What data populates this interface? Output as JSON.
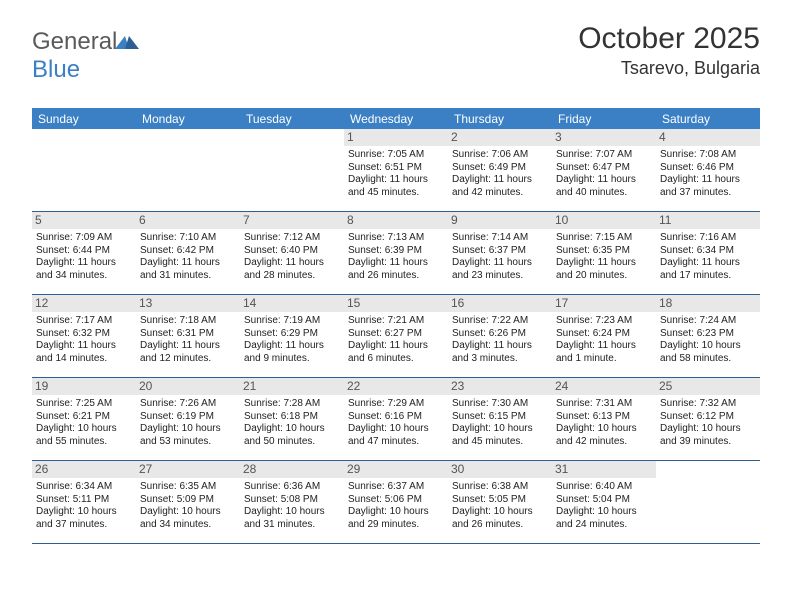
{
  "logo": {
    "text_general": "General",
    "text_blue": "Blue"
  },
  "header": {
    "month_title": "October 2025",
    "location": "Tsarevo, Bulgaria"
  },
  "colors": {
    "brand_blue": "#3b7fc4",
    "brand_blue_dark": "#2e5f94",
    "row_header_bg": "#e8e8e8",
    "text_dark": "#333333",
    "text_gray": "#5a5a5a",
    "background": "#ffffff"
  },
  "typography": {
    "month_title_fontsize": 30,
    "location_fontsize": 18,
    "day_header_fontsize": 12,
    "day_num_fontsize": 12,
    "cell_fontsize": 10,
    "logo_fontsize": 24
  },
  "day_names": [
    "Sunday",
    "Monday",
    "Tuesday",
    "Wednesday",
    "Thursday",
    "Friday",
    "Saturday"
  ],
  "weeks": [
    [
      {
        "day": "",
        "sunrise": "",
        "sunset": "",
        "daylight": ""
      },
      {
        "day": "",
        "sunrise": "",
        "sunset": "",
        "daylight": ""
      },
      {
        "day": "",
        "sunrise": "",
        "sunset": "",
        "daylight": ""
      },
      {
        "day": "1",
        "sunrise": "Sunrise: 7:05 AM",
        "sunset": "Sunset: 6:51 PM",
        "daylight": "Daylight: 11 hours and 45 minutes."
      },
      {
        "day": "2",
        "sunrise": "Sunrise: 7:06 AM",
        "sunset": "Sunset: 6:49 PM",
        "daylight": "Daylight: 11 hours and 42 minutes."
      },
      {
        "day": "3",
        "sunrise": "Sunrise: 7:07 AM",
        "sunset": "Sunset: 6:47 PM",
        "daylight": "Daylight: 11 hours and 40 minutes."
      },
      {
        "day": "4",
        "sunrise": "Sunrise: 7:08 AM",
        "sunset": "Sunset: 6:46 PM",
        "daylight": "Daylight: 11 hours and 37 minutes."
      }
    ],
    [
      {
        "day": "5",
        "sunrise": "Sunrise: 7:09 AM",
        "sunset": "Sunset: 6:44 PM",
        "daylight": "Daylight: 11 hours and 34 minutes."
      },
      {
        "day": "6",
        "sunrise": "Sunrise: 7:10 AM",
        "sunset": "Sunset: 6:42 PM",
        "daylight": "Daylight: 11 hours and 31 minutes."
      },
      {
        "day": "7",
        "sunrise": "Sunrise: 7:12 AM",
        "sunset": "Sunset: 6:40 PM",
        "daylight": "Daylight: 11 hours and 28 minutes."
      },
      {
        "day": "8",
        "sunrise": "Sunrise: 7:13 AM",
        "sunset": "Sunset: 6:39 PM",
        "daylight": "Daylight: 11 hours and 26 minutes."
      },
      {
        "day": "9",
        "sunrise": "Sunrise: 7:14 AM",
        "sunset": "Sunset: 6:37 PM",
        "daylight": "Daylight: 11 hours and 23 minutes."
      },
      {
        "day": "10",
        "sunrise": "Sunrise: 7:15 AM",
        "sunset": "Sunset: 6:35 PM",
        "daylight": "Daylight: 11 hours and 20 minutes."
      },
      {
        "day": "11",
        "sunrise": "Sunrise: 7:16 AM",
        "sunset": "Sunset: 6:34 PM",
        "daylight": "Daylight: 11 hours and 17 minutes."
      }
    ],
    [
      {
        "day": "12",
        "sunrise": "Sunrise: 7:17 AM",
        "sunset": "Sunset: 6:32 PM",
        "daylight": "Daylight: 11 hours and 14 minutes."
      },
      {
        "day": "13",
        "sunrise": "Sunrise: 7:18 AM",
        "sunset": "Sunset: 6:31 PM",
        "daylight": "Daylight: 11 hours and 12 minutes."
      },
      {
        "day": "14",
        "sunrise": "Sunrise: 7:19 AM",
        "sunset": "Sunset: 6:29 PM",
        "daylight": "Daylight: 11 hours and 9 minutes."
      },
      {
        "day": "15",
        "sunrise": "Sunrise: 7:21 AM",
        "sunset": "Sunset: 6:27 PM",
        "daylight": "Daylight: 11 hours and 6 minutes."
      },
      {
        "day": "16",
        "sunrise": "Sunrise: 7:22 AM",
        "sunset": "Sunset: 6:26 PM",
        "daylight": "Daylight: 11 hours and 3 minutes."
      },
      {
        "day": "17",
        "sunrise": "Sunrise: 7:23 AM",
        "sunset": "Sunset: 6:24 PM",
        "daylight": "Daylight: 11 hours and 1 minute."
      },
      {
        "day": "18",
        "sunrise": "Sunrise: 7:24 AM",
        "sunset": "Sunset: 6:23 PM",
        "daylight": "Daylight: 10 hours and 58 minutes."
      }
    ],
    [
      {
        "day": "19",
        "sunrise": "Sunrise: 7:25 AM",
        "sunset": "Sunset: 6:21 PM",
        "daylight": "Daylight: 10 hours and 55 minutes."
      },
      {
        "day": "20",
        "sunrise": "Sunrise: 7:26 AM",
        "sunset": "Sunset: 6:19 PM",
        "daylight": "Daylight: 10 hours and 53 minutes."
      },
      {
        "day": "21",
        "sunrise": "Sunrise: 7:28 AM",
        "sunset": "Sunset: 6:18 PM",
        "daylight": "Daylight: 10 hours and 50 minutes."
      },
      {
        "day": "22",
        "sunrise": "Sunrise: 7:29 AM",
        "sunset": "Sunset: 6:16 PM",
        "daylight": "Daylight: 10 hours and 47 minutes."
      },
      {
        "day": "23",
        "sunrise": "Sunrise: 7:30 AM",
        "sunset": "Sunset: 6:15 PM",
        "daylight": "Daylight: 10 hours and 45 minutes."
      },
      {
        "day": "24",
        "sunrise": "Sunrise: 7:31 AM",
        "sunset": "Sunset: 6:13 PM",
        "daylight": "Daylight: 10 hours and 42 minutes."
      },
      {
        "day": "25",
        "sunrise": "Sunrise: 7:32 AM",
        "sunset": "Sunset: 6:12 PM",
        "daylight": "Daylight: 10 hours and 39 minutes."
      }
    ],
    [
      {
        "day": "26",
        "sunrise": "Sunrise: 6:34 AM",
        "sunset": "Sunset: 5:11 PM",
        "daylight": "Daylight: 10 hours and 37 minutes."
      },
      {
        "day": "27",
        "sunrise": "Sunrise: 6:35 AM",
        "sunset": "Sunset: 5:09 PM",
        "daylight": "Daylight: 10 hours and 34 minutes."
      },
      {
        "day": "28",
        "sunrise": "Sunrise: 6:36 AM",
        "sunset": "Sunset: 5:08 PM",
        "daylight": "Daylight: 10 hours and 31 minutes."
      },
      {
        "day": "29",
        "sunrise": "Sunrise: 6:37 AM",
        "sunset": "Sunset: 5:06 PM",
        "daylight": "Daylight: 10 hours and 29 minutes."
      },
      {
        "day": "30",
        "sunrise": "Sunrise: 6:38 AM",
        "sunset": "Sunset: 5:05 PM",
        "daylight": "Daylight: 10 hours and 26 minutes."
      },
      {
        "day": "31",
        "sunrise": "Sunrise: 6:40 AM",
        "sunset": "Sunset: 5:04 PM",
        "daylight": "Daylight: 10 hours and 24 minutes."
      },
      {
        "day": "",
        "sunrise": "",
        "sunset": "",
        "daylight": ""
      }
    ]
  ]
}
